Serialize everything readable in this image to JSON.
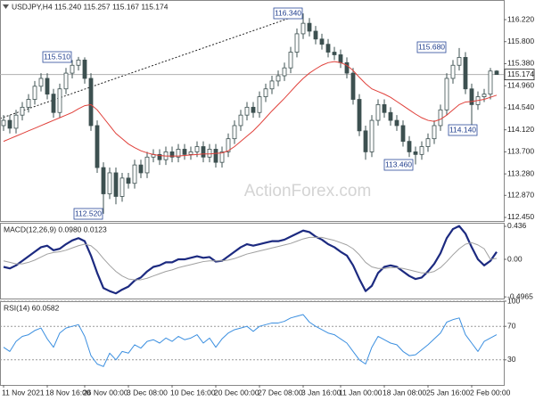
{
  "chart_data": [
    {
      "type": "candlestick",
      "title": "USDJPY,H4  115.240 115.257 115.167 115.174",
      "watermark": "ActionForex.com",
      "color": "#3d5050",
      "ma_color": "#e0403a",
      "price_line_color": "#b0b0b0",
      "ylim": [
        112.382,
        116.594
      ],
      "yticks": [
        {
          "value": 116.22,
          "label": "116.220"
        },
        {
          "value": 115.8,
          "label": "115.800"
        },
        {
          "value": 115.38,
          "label": "115.380"
        },
        {
          "value": 114.96,
          "label": "114.960"
        },
        {
          "value": 114.54,
          "label": "114.540"
        },
        {
          "value": 114.12,
          "label": "114.120"
        },
        {
          "value": 113.7,
          "label": "113.700"
        },
        {
          "value": 113.28,
          "label": "113.280"
        },
        {
          "value": 112.87,
          "label": "112.870"
        },
        {
          "value": 112.45,
          "label": "112.450"
        }
      ],
      "annotations": [
        "116.340",
        "115.510",
        "112.520",
        "115.680",
        "114.140",
        "113.460"
      ],
      "open": [
        114.2,
        114.3,
        114.15,
        114.4,
        114.55,
        114.7,
        114.95,
        115.1,
        114.8,
        114.45,
        114.9,
        115.2,
        115.35,
        115.45,
        115.1,
        114.2,
        113.4,
        112.9,
        113.3,
        112.85,
        113.2,
        113.1,
        113.45,
        113.3,
        113.6,
        113.65,
        113.55,
        113.7,
        113.6,
        113.75,
        113.65,
        113.7,
        113.8,
        113.6,
        113.75,
        113.5,
        113.7,
        113.95,
        114.2,
        114.4,
        114.55,
        114.45,
        114.75,
        114.9,
        115.05,
        115.15,
        115.3,
        115.6,
        115.95,
        116.15,
        116.0,
        115.85,
        115.75,
        115.6,
        115.55,
        115.4,
        115.2,
        114.7,
        114.1,
        113.7,
        114.3,
        114.6,
        114.45,
        114.3,
        114.2,
        113.9,
        113.7,
        113.65,
        113.8,
        113.95,
        114.2,
        114.5,
        115.1,
        115.35,
        115.5,
        114.9,
        114.6,
        114.75,
        114.8,
        115.24
      ],
      "high": [
        114.4,
        114.4,
        114.5,
        114.65,
        114.8,
        115.05,
        115.2,
        115.2,
        114.9,
        115.0,
        115.3,
        115.45,
        115.51,
        115.5,
        115.2,
        114.3,
        113.5,
        113.4,
        113.4,
        113.3,
        113.3,
        113.55,
        113.55,
        113.7,
        113.75,
        113.75,
        113.8,
        113.8,
        113.85,
        113.85,
        113.8,
        113.9,
        113.9,
        113.85,
        113.85,
        113.8,
        114.05,
        114.3,
        114.5,
        114.65,
        114.65,
        114.85,
        115.0,
        115.15,
        115.25,
        115.4,
        115.7,
        116.05,
        116.34,
        116.25,
        116.1,
        115.95,
        115.85,
        115.7,
        115.65,
        115.5,
        115.3,
        114.8,
        114.2,
        114.4,
        114.7,
        114.7,
        114.55,
        114.4,
        114.3,
        114.0,
        113.8,
        113.9,
        114.05,
        114.3,
        114.6,
        115.2,
        115.45,
        115.68,
        115.6,
        115.0,
        114.85,
        114.9,
        115.3,
        115.257
      ],
      "low": [
        114.1,
        114.05,
        114.05,
        114.3,
        114.45,
        114.6,
        114.85,
        114.7,
        114.35,
        114.35,
        114.8,
        115.1,
        115.25,
        115.0,
        114.1,
        113.3,
        112.52,
        112.8,
        112.7,
        112.75,
        113.0,
        113.0,
        113.2,
        113.2,
        113.5,
        113.45,
        113.45,
        113.5,
        113.5,
        113.55,
        113.55,
        113.6,
        113.5,
        113.5,
        113.4,
        113.4,
        113.6,
        113.85,
        114.1,
        114.3,
        114.35,
        114.35,
        114.65,
        114.8,
        114.95,
        115.05,
        115.2,
        115.5,
        115.85,
        115.9,
        115.75,
        115.65,
        115.5,
        115.45,
        115.3,
        115.1,
        114.6,
        114.0,
        113.55,
        113.6,
        114.2,
        114.35,
        114.2,
        114.1,
        113.8,
        113.6,
        113.46,
        113.55,
        113.7,
        113.85,
        114.1,
        114.4,
        115.0,
        115.25,
        114.8,
        114.14,
        114.5,
        114.65,
        114.7,
        115.167
      ],
      "close": [
        114.3,
        114.15,
        114.4,
        114.55,
        114.7,
        114.95,
        115.1,
        114.8,
        114.45,
        114.9,
        115.2,
        115.35,
        115.45,
        115.1,
        114.2,
        113.4,
        112.9,
        113.3,
        112.85,
        113.2,
        113.1,
        113.45,
        113.3,
        113.6,
        113.65,
        113.55,
        113.7,
        113.6,
        113.75,
        113.65,
        113.7,
        113.8,
        113.6,
        113.75,
        113.5,
        113.7,
        113.95,
        114.2,
        114.4,
        114.55,
        114.45,
        114.75,
        114.9,
        115.05,
        115.15,
        115.3,
        115.6,
        115.95,
        116.15,
        116.0,
        115.85,
        115.75,
        115.6,
        115.55,
        115.4,
        115.2,
        114.7,
        114.1,
        113.7,
        114.3,
        114.6,
        114.45,
        114.3,
        114.2,
        113.9,
        113.7,
        113.65,
        113.8,
        113.95,
        114.2,
        114.5,
        115.1,
        115.35,
        115.5,
        114.9,
        114.6,
        114.75,
        114.8,
        115.24,
        115.174
      ],
      "ma": [
        113.9,
        113.95,
        114.0,
        114.05,
        114.1,
        114.15,
        114.2,
        114.25,
        114.3,
        114.35,
        114.4,
        114.45,
        114.52,
        114.58,
        114.6,
        114.5,
        114.35,
        114.2,
        114.05,
        113.95,
        113.85,
        113.78,
        113.72,
        113.68,
        113.65,
        113.63,
        113.62,
        113.62,
        113.62,
        113.63,
        113.64,
        113.65,
        113.66,
        113.66,
        113.67,
        113.68,
        113.72,
        113.8,
        113.9,
        114.0,
        114.1,
        114.22,
        114.35,
        114.48,
        114.6,
        114.72,
        114.85,
        114.98,
        115.1,
        115.2,
        115.28,
        115.35,
        115.4,
        115.42,
        115.4,
        115.35,
        115.25,
        115.12,
        115.0,
        114.9,
        114.85,
        114.8,
        114.74,
        114.66,
        114.58,
        114.5,
        114.42,
        114.35,
        114.3,
        114.28,
        114.32,
        114.4,
        114.5,
        114.6,
        114.65,
        114.66,
        114.68,
        114.7,
        114.74,
        114.78
      ]
    },
    {
      "type": "line",
      "title": "MACD(12,26,9) 0.0980 0.0123",
      "ylim": [
        -0.518,
        0.483
      ],
      "yticks": [
        0.436,
        {
          "value": 0,
          "label": "0.00"
        },
        -0.4965
      ],
      "series": [
        {
          "color": "#1c2a80",
          "width": 2.2,
          "values": [
            -0.1,
            -0.12,
            -0.08,
            -0.02,
            0.04,
            0.1,
            0.16,
            0.18,
            0.12,
            0.14,
            0.2,
            0.25,
            0.28,
            0.24,
            0.05,
            -0.18,
            -0.38,
            -0.42,
            -0.45,
            -0.4,
            -0.36,
            -0.28,
            -0.24,
            -0.16,
            -0.1,
            -0.08,
            -0.04,
            -0.04,
            0.0,
            0.0,
            0.02,
            0.04,
            0.02,
            0.03,
            -0.03,
            -0.02,
            0.04,
            0.1,
            0.16,
            0.2,
            0.18,
            0.2,
            0.22,
            0.24,
            0.24,
            0.26,
            0.3,
            0.34,
            0.38,
            0.36,
            0.3,
            0.26,
            0.2,
            0.16,
            0.1,
            0.05,
            -0.08,
            -0.26,
            -0.42,
            -0.35,
            -0.18,
            -0.1,
            -0.08,
            -0.1,
            -0.16,
            -0.22,
            -0.26,
            -0.24,
            -0.16,
            -0.06,
            0.08,
            0.28,
            0.4,
            0.44,
            0.34,
            0.16,
            0.0,
            -0.08,
            -0.02,
            0.098
          ]
        },
        {
          "color": "#a0a0a0",
          "width": 1,
          "values": [
            -0.02,
            -0.04,
            -0.06,
            -0.06,
            -0.04,
            -0.01,
            0.03,
            0.07,
            0.09,
            0.1,
            0.12,
            0.15,
            0.18,
            0.2,
            0.18,
            0.11,
            0.01,
            -0.08,
            -0.16,
            -0.22,
            -0.26,
            -0.27,
            -0.27,
            -0.25,
            -0.22,
            -0.19,
            -0.16,
            -0.14,
            -0.11,
            -0.09,
            -0.07,
            -0.05,
            -0.03,
            -0.02,
            -0.02,
            -0.02,
            -0.01,
            0.01,
            0.04,
            0.07,
            0.09,
            0.11,
            0.13,
            0.15,
            0.17,
            0.19,
            0.21,
            0.24,
            0.27,
            0.29,
            0.29,
            0.29,
            0.27,
            0.25,
            0.22,
            0.19,
            0.14,
            0.06,
            -0.04,
            -0.1,
            -0.12,
            -0.12,
            -0.11,
            -0.11,
            -0.12,
            -0.14,
            -0.16,
            -0.18,
            -0.18,
            -0.16,
            -0.11,
            -0.03,
            0.06,
            0.14,
            0.2,
            0.22,
            0.19,
            0.14,
            0.0,
            0.0123
          ]
        }
      ]
    },
    {
      "type": "line",
      "title": "RSI(14) 60.0582",
      "grid": true,
      "ylim": [
        0,
        100
      ],
      "yticks": [
        100,
        70,
        30
      ],
      "series": [
        {
          "color": "#3b8fe0",
          "width": 1,
          "values": [
            45,
            40,
            52,
            58,
            60,
            65,
            68,
            55,
            45,
            62,
            68,
            70,
            72,
            58,
            35,
            25,
            22,
            38,
            30,
            40,
            38,
            48,
            44,
            52,
            54,
            50,
            56,
            52,
            58,
            54,
            56,
            60,
            50,
            56,
            45,
            55,
            62,
            66,
            68,
            70,
            64,
            70,
            72,
            74,
            74,
            76,
            80,
            82,
            84,
            75,
            70,
            66,
            62,
            60,
            55,
            50,
            40,
            30,
            25,
            45,
            58,
            54,
            50,
            48,
            40,
            35,
            36,
            42,
            48,
            55,
            62,
            75,
            78,
            80,
            60,
            50,
            40,
            52,
            56,
            60.0582
          ]
        }
      ],
      "xticks": [
        {
          "value": 0,
          "label": "11 Nov 2021"
        },
        {
          "value": 7,
          "label": "18 Nov 16:00"
        },
        {
          "value": 13,
          "label": "26 Nov 00:00"
        },
        {
          "value": 20,
          "label": "3 Dec 08:00"
        },
        {
          "value": 27,
          "label": "10 Dec 16:00"
        },
        {
          "value": 34,
          "label": "20 Dec 00:00"
        },
        {
          "value": 41,
          "label": "27 Dec 08:00"
        },
        {
          "value": 48,
          "label": "3 Jan 16:00"
        },
        {
          "value": 54,
          "label": "11 Jan 00:00"
        },
        {
          "value": 61,
          "label": "18 Jan 08:00"
        },
        {
          "value": 68,
          "label": "25 Jan 16:00"
        },
        {
          "value": 75,
          "label": "2 Feb 00:00"
        }
      ]
    }
  ]
}
